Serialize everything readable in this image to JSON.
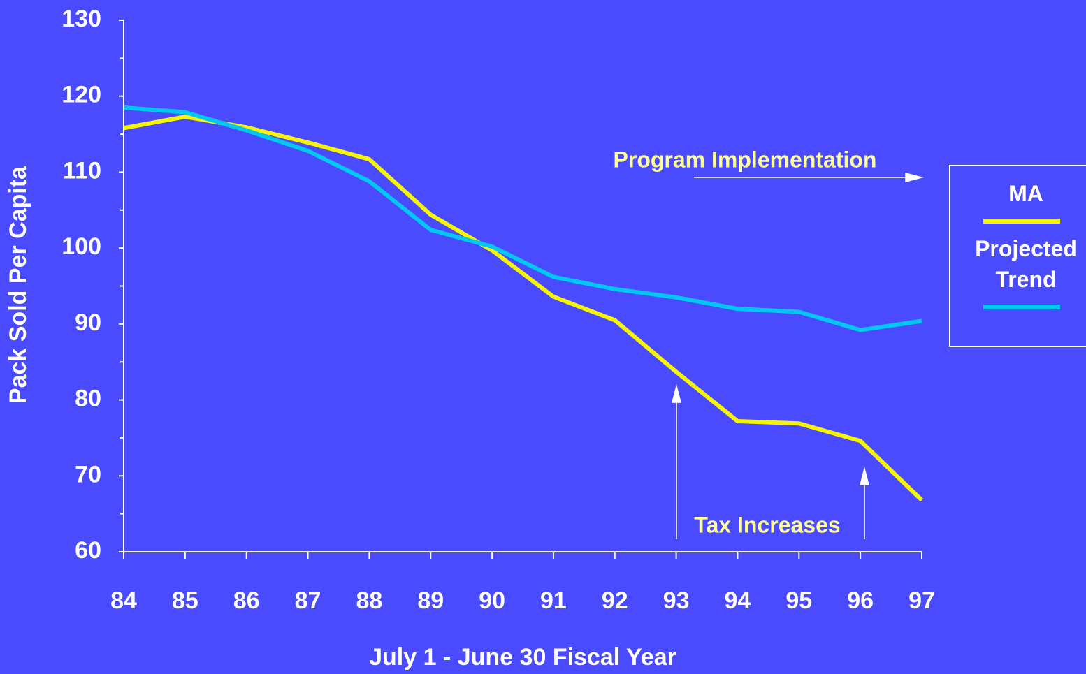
{
  "chart_data": {
    "type": "line",
    "x_label": "July 1 - June 30 Fiscal Year",
    "y_label": "Pack Sold Per Capita",
    "categories": [
      "84",
      "85",
      "86",
      "87",
      "88",
      "89",
      "90",
      "91",
      "92",
      "93",
      "94",
      "95",
      "96",
      "97"
    ],
    "series": [
      {
        "name": "MA",
        "color": "#f5f500",
        "values": [
          115.8,
          117.3,
          115.9,
          113.9,
          111.7,
          104.4,
          99.7,
          93.6,
          90.5,
          83.7,
          77.2,
          76.9,
          74.6,
          66.8
        ]
      },
      {
        "name": "Projected Trend",
        "color": "#00c8f0",
        "values": [
          118.5,
          117.9,
          115.5,
          112.8,
          108.8,
          102.4,
          100.2,
          96.2,
          94.6,
          93.5,
          92.0,
          91.6,
          89.2,
          90.4
        ]
      }
    ],
    "ylim": [
      60,
      130
    ],
    "yticks": [
      60,
      70,
      80,
      90,
      100,
      110,
      120,
      130
    ],
    "annotations": [
      "Program Implementation",
      "Tax Increases"
    ],
    "legend": "right"
  }
}
